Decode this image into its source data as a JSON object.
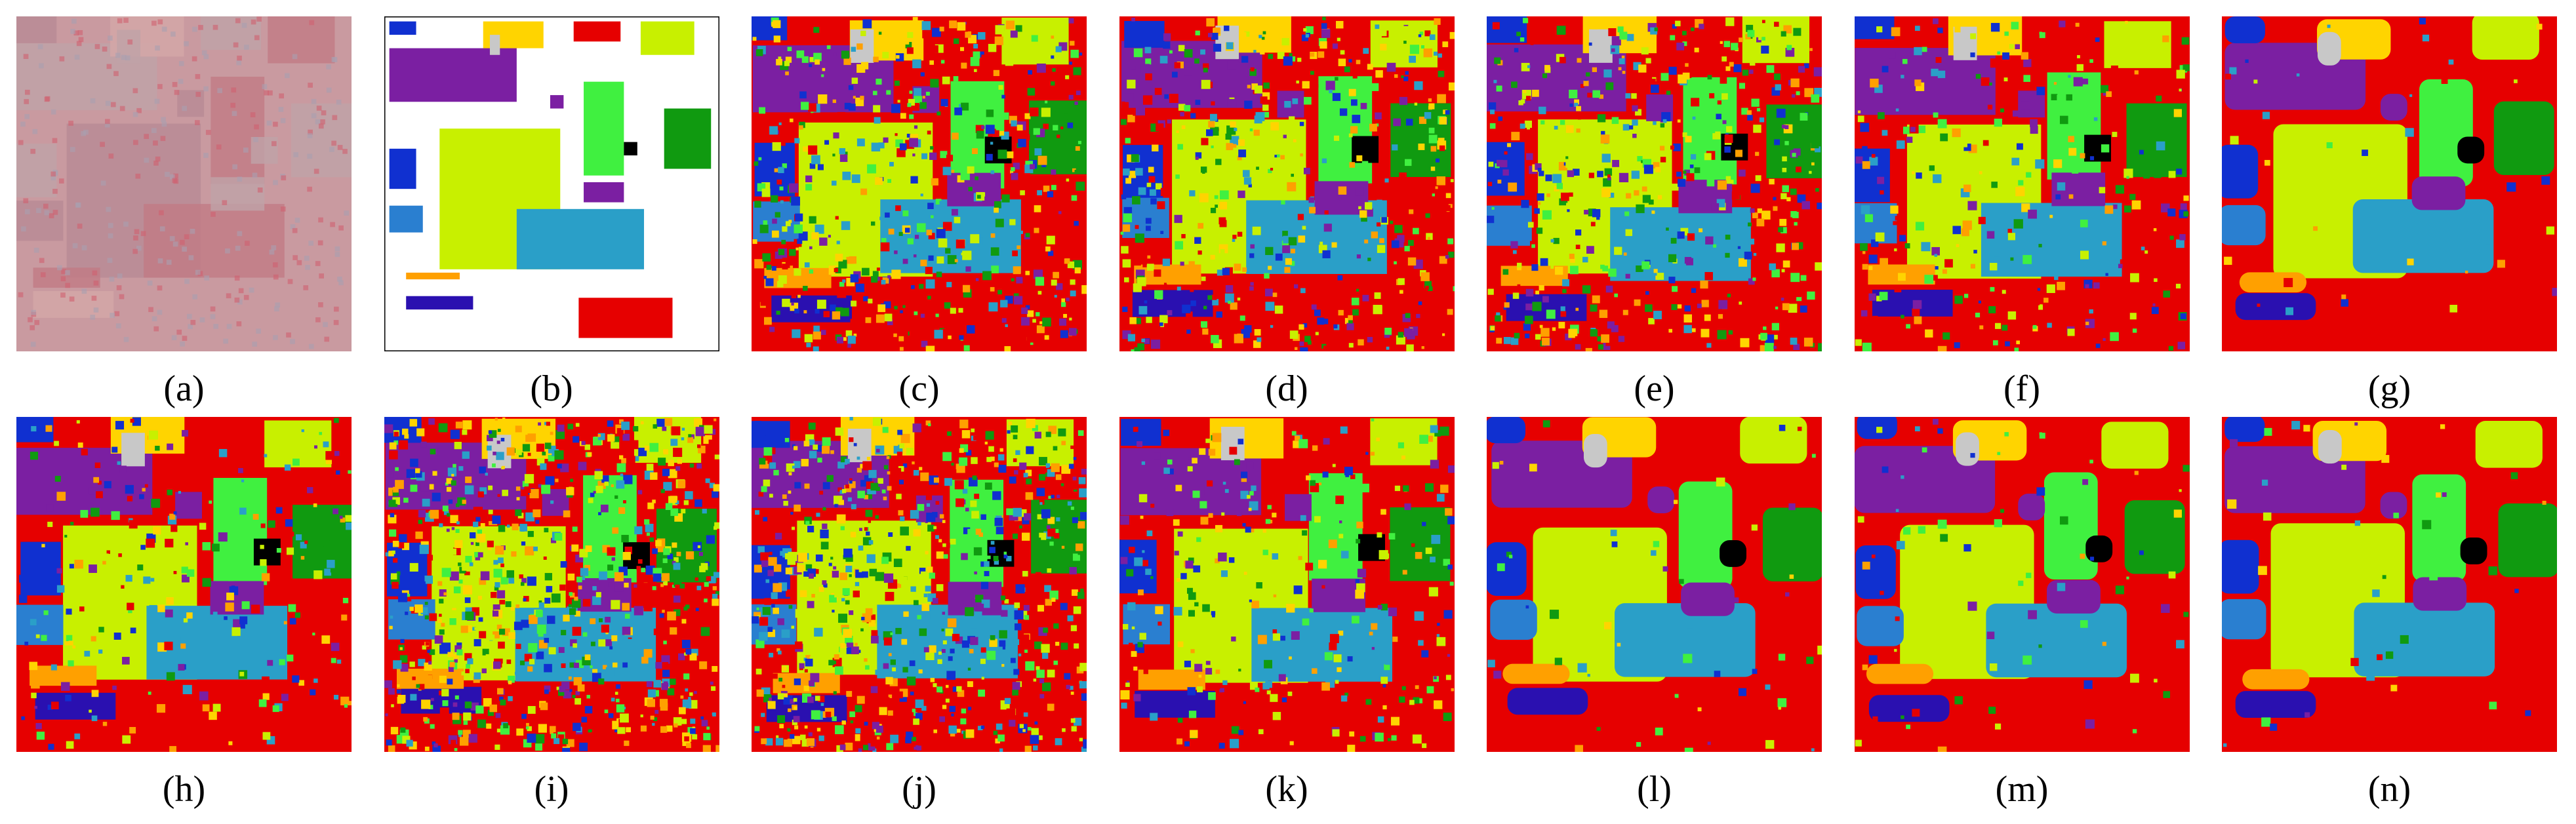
{
  "panels": [
    {
      "label": "(a)"
    },
    {
      "label": "(b)"
    },
    {
      "label": "(c)"
    },
    {
      "label": "(d)"
    },
    {
      "label": "(e)"
    },
    {
      "label": "(f)"
    },
    {
      "label": "(g)"
    },
    {
      "label": "(h)"
    },
    {
      "label": "(i)"
    },
    {
      "label": "(j)"
    },
    {
      "label": "(k)"
    },
    {
      "label": "(l)"
    },
    {
      "label": "(m)"
    },
    {
      "label": "(n)"
    }
  ]
}
